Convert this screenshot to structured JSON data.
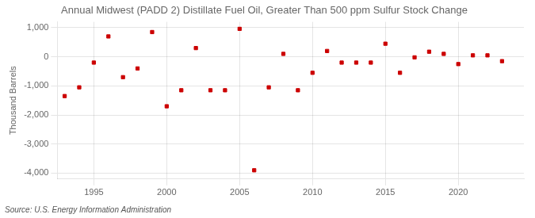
{
  "chart_data": {
    "type": "scatter",
    "title": "Annual Midwest (PADD 2) Distillate Fuel Oil, Greater Than 500 ppm Sulfur Stock Change",
    "y_label": "Thousand Barrels",
    "annotations": [
      "Source: U.S. Energy Information Administration"
    ],
    "x": [
      1993,
      1994,
      1995,
      1996,
      1997,
      1998,
      1999,
      2000,
      2001,
      2002,
      2003,
      2004,
      2005,
      2006,
      2007,
      2008,
      2009,
      2010,
      2011,
      2012,
      2013,
      2014,
      2015,
      2016,
      2017,
      2018,
      2019,
      2020,
      2021,
      2022,
      2023
    ],
    "values": [
      -1350,
      -1050,
      -200,
      700,
      -700,
      -400,
      850,
      -1700,
      -1150,
      300,
      -1150,
      -1150,
      960,
      -3900,
      -1050,
      100,
      -1150,
      -550,
      200,
      -200,
      -200,
      -200,
      450,
      -550,
      -20,
      175,
      100,
      -250,
      50,
      50,
      -150
    ],
    "color": "#cc0000",
    "marker": "square",
    "xlim": [
      1992.5,
      2024.5
    ],
    "xticks": [
      1995,
      2000,
      2005,
      2010,
      2015,
      2020
    ],
    "ylim": [
      -4200,
      1200
    ],
    "yticks": [
      {
        "value": -4000,
        "label": "-4,000"
      },
      {
        "value": -3000,
        "label": "-3,000"
      },
      {
        "value": -2000,
        "label": "-2,000"
      },
      {
        "value": -1000,
        "label": "-1,000"
      },
      0,
      {
        "value": 1000,
        "label": "1,000"
      }
    ],
    "grid": true
  }
}
